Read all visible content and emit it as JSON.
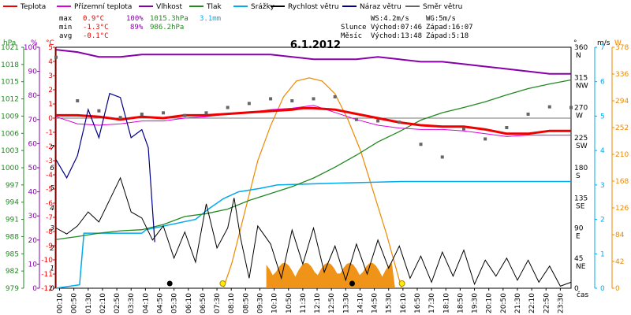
{
  "chart_data": {
    "type": "line",
    "title": "6.1.2012",
    "legend": [
      {
        "label": "Teplota",
        "color": "#ee0000"
      },
      {
        "label": "Přízemní teplota",
        "color": "#dd00dd"
      },
      {
        "label": "Vlhkost",
        "color": "#8800aa"
      },
      {
        "label": "Tlak",
        "color": "#228822"
      },
      {
        "label": "Srážky",
        "color": "#00aaee"
      },
      {
        "label": "Rychlost větru",
        "color": "#000000"
      },
      {
        "label": "Náraz větru",
        "color": "#000088"
      },
      {
        "label": "Směr větru",
        "color": "#666666"
      }
    ],
    "stats": {
      "max_label": "max",
      "min_label": "min",
      "avg_label": "avg",
      "max_temp": "0.9°C",
      "max_hum": "100%",
      "max_press": "1015.3hPa",
      "max_rain": "3.1mm",
      "min_temp": "-1.3°C",
      "min_hum": "89%",
      "min_press": "986.2hPa",
      "avg_temp": "-0.1°C",
      "ws": "WS:4.2m/s",
      "wg": "WG:5m/s",
      "sun_label": "Slunce",
      "sun_rise": "Východ:07:46",
      "sun_set": "Západ:16:07",
      "moon_label": "Měsíc",
      "moon_rise": "Východ:13:48",
      "moon_set": "Západ:5:18"
    },
    "axis_titles": {
      "hpa": "hPa",
      "pct": "%",
      "degc": "°C",
      "deg": "°",
      "ms": "m/s",
      "w": "W",
      "time": "čas"
    },
    "colors": {
      "hpa": "#228822",
      "pct": "#8800aa",
      "degc": "#ee0000",
      "ms_left": "#000000",
      "deg": "#000000",
      "ms_right": "#00aaee",
      "w": "#ee8800"
    },
    "axes": {
      "temp_c": {
        "min": -12,
        "max": 5
      },
      "humidity_pct": {
        "min": 0,
        "max": 100
      },
      "pressure_hpa": {
        "min": 979,
        "max": 1021
      },
      "wind_left_ms": {
        "min": 0,
        "max": 12
      },
      "direction_deg": {
        "min": 0,
        "max": 360
      },
      "wind_right_ms": {
        "min": 0,
        "max": 7
      },
      "solar_w": {
        "min": 0,
        "max": 378
      }
    },
    "hpa_ticks": [
      "1021",
      "1018",
      "1015",
      "1012",
      "1009",
      "1006",
      "1003",
      "1000",
      "997",
      "994",
      "991",
      "988",
      "985",
      "982",
      "979"
    ],
    "pct_ticks": [
      "100",
      "90",
      "80",
      "70",
      "60",
      "50",
      "40",
      "30",
      "20",
      "10",
      "0"
    ],
    "degc_ticks": [
      "5",
      "4",
      "3",
      "2",
      "1",
      "0",
      "-1",
      "-2",
      "-3",
      "-4",
      "-5",
      "-6",
      "-7",
      "-8",
      "-9",
      "-10",
      "-11",
      "-12"
    ],
    "ms_left_ticks": [
      "12",
      "11",
      "10",
      "9",
      "8",
      "7",
      "6",
      "5",
      "4",
      "3",
      "2",
      "1",
      "0"
    ],
    "deg_ticks": [
      {
        "v": "360",
        "d": "N"
      },
      {
        "v": "315",
        "d": "NW"
      },
      {
        "v": "270",
        "d": "W"
      },
      {
        "v": "225",
        "d": "SW"
      },
      {
        "v": "180",
        "d": "S"
      },
      {
        "v": "135",
        "d": "SE"
      },
      {
        "v": "90",
        "d": "E"
      },
      {
        "v": "45",
        "d": "NE"
      },
      {
        "v": "0",
        "d": ""
      }
    ],
    "ms_right_ticks": [
      "7",
      "6",
      "5",
      "4",
      "3",
      "2",
      "1",
      "0"
    ],
    "w_ticks": [
      "378",
      "336",
      "294",
      "252",
      "210",
      "168",
      "126",
      "84",
      "42",
      "0"
    ],
    "time_ticks": [
      "00:10",
      "00:50",
      "01:30",
      "02:10",
      "02:50",
      "03:30",
      "04:10",
      "04:50",
      "05:30",
      "06:10",
      "06:50",
      "07:30",
      "08:10",
      "08:50",
      "09:30",
      "10:10",
      "10:50",
      "11:30",
      "12:10",
      "12:50",
      "13:30",
      "14:10",
      "14:50",
      "15:30",
      "16:10",
      "16:50",
      "17:30",
      "18:10",
      "18:50",
      "19:30",
      "20:10",
      "20:50",
      "21:30",
      "22:10",
      "22:50",
      "23:30"
    ],
    "temperature": [
      [
        0,
        0.2
      ],
      [
        1,
        0.2
      ],
      [
        2,
        0.1
      ],
      [
        3,
        -0.1
      ],
      [
        4,
        0.1
      ],
      [
        5,
        0
      ],
      [
        6,
        0.2
      ],
      [
        7,
        0.2
      ],
      [
        8,
        0.3
      ],
      [
        9,
        0.4
      ],
      [
        10,
        0.5
      ],
      [
        11,
        0.6
      ],
      [
        11.5,
        0.7
      ],
      [
        12,
        0.7
      ],
      [
        13,
        0.6
      ],
      [
        14,
        0.3
      ],
      [
        15,
        0
      ],
      [
        16,
        -0.3
      ],
      [
        17,
        -0.5
      ],
      [
        18,
        -0.6
      ],
      [
        19,
        -0.6
      ],
      [
        20,
        -0.8
      ],
      [
        21,
        -1.1
      ],
      [
        22,
        -1.1
      ],
      [
        23,
        -0.9
      ],
      [
        24,
        -0.9
      ]
    ],
    "ground_temperature": [
      [
        0,
        0.1
      ],
      [
        1,
        -0.4
      ],
      [
        2,
        -0.5
      ],
      [
        3,
        -0.4
      ],
      [
        4,
        -0.2
      ],
      [
        5,
        -0.2
      ],
      [
        6,
        0
      ],
      [
        7,
        0.1
      ],
      [
        8,
        0.3
      ],
      [
        9,
        0.4
      ],
      [
        10,
        0.6
      ],
      [
        11,
        0.7
      ],
      [
        12,
        0.9
      ],
      [
        13,
        0.4
      ],
      [
        14,
        -0.1
      ],
      [
        15,
        -0.5
      ],
      [
        16,
        -0.7
      ],
      [
        17,
        -0.8
      ],
      [
        18,
        -0.8
      ],
      [
        19,
        -0.9
      ],
      [
        20,
        -1.1
      ],
      [
        21,
        -1.3
      ],
      [
        22,
        -1.2
      ],
      [
        23,
        -1.2
      ],
      [
        24,
        -1.2
      ]
    ],
    "humidity": [
      [
        0,
        99
      ],
      [
        1,
        98
      ],
      [
        2,
        96
      ],
      [
        3,
        96
      ],
      [
        4,
        97
      ],
      [
        5,
        97
      ],
      [
        6,
        97
      ],
      [
        7,
        97
      ],
      [
        8,
        97
      ],
      [
        9,
        97
      ],
      [
        10,
        97
      ],
      [
        11,
        96
      ],
      [
        12,
        95
      ],
      [
        13,
        95
      ],
      [
        14,
        95
      ],
      [
        15,
        96
      ],
      [
        16,
        95
      ],
      [
        17,
        94
      ],
      [
        18,
        94
      ],
      [
        19,
        93
      ],
      [
        20,
        92
      ],
      [
        21,
        91
      ],
      [
        22,
        90
      ],
      [
        23,
        89
      ],
      [
        24,
        89
      ]
    ],
    "pressure": [
      [
        0,
        987.5
      ],
      [
        1,
        988.0
      ],
      [
        2,
        988.6
      ],
      [
        3,
        989.0
      ],
      [
        4,
        989.2
      ],
      [
        5,
        990.1
      ],
      [
        6,
        991.5
      ],
      [
        7,
        992.0
      ],
      [
        8,
        992.8
      ],
      [
        9,
        994.3
      ],
      [
        10,
        995.5
      ],
      [
        11,
        996.7
      ],
      [
        12,
        998.2
      ],
      [
        13,
        1000.1
      ],
      [
        14,
        1002.2
      ],
      [
        15,
        1004.5
      ],
      [
        16,
        1006.3
      ],
      [
        17,
        1008.3
      ],
      [
        18,
        1009.6
      ],
      [
        19,
        1010.5
      ],
      [
        20,
        1011.5
      ],
      [
        21,
        1012.7
      ],
      [
        22,
        1013.8
      ],
      [
        23,
        1014.6
      ],
      [
        24,
        1015.3
      ]
    ],
    "rain_m_s": [
      [
        0,
        0
      ],
      [
        1.1,
        0.1
      ],
      [
        1.3,
        1.6
      ],
      [
        4,
        1.6
      ],
      [
        4.2,
        1.7
      ],
      [
        6.5,
        2.0
      ],
      [
        7.1,
        2.3
      ],
      [
        7.8,
        2.6
      ],
      [
        8.5,
        2.8
      ],
      [
        9.5,
        2.9
      ],
      [
        10.3,
        3.0
      ],
      [
        12.8,
        3.05
      ],
      [
        16.1,
        3.1
      ],
      [
        24,
        3.1
      ]
    ],
    "wind_speed": [
      [
        0,
        3
      ],
      [
        0.5,
        2.7
      ],
      [
        1,
        3.1
      ],
      [
        1.5,
        3.8
      ],
      [
        2,
        3.3
      ],
      [
        2.5,
        4.4
      ],
      [
        3,
        5.5
      ],
      [
        3.5,
        3.8
      ],
      [
        4,
        3.5
      ],
      [
        4.5,
        2.4
      ],
      [
        5,
        3.1
      ],
      [
        5.5,
        1.5
      ],
      [
        6,
        2.8
      ],
      [
        6.5,
        1.3
      ],
      [
        7,
        4.2
      ],
      [
        7.5,
        2.0
      ],
      [
        8,
        3.0
      ],
      [
        8.3,
        4.5
      ],
      [
        8.6,
        2.5
      ],
      [
        9,
        0.5
      ],
      [
        9.4,
        3.1
      ],
      [
        10,
        2.2
      ],
      [
        10.5,
        0.5
      ],
      [
        11,
        2.9
      ],
      [
        11.5,
        1.2
      ],
      [
        12,
        3.0
      ],
      [
        12.5,
        0.8
      ],
      [
        13,
        2.1
      ],
      [
        13.5,
        0.4
      ],
      [
        14,
        2.2
      ],
      [
        14.5,
        0.7
      ],
      [
        15,
        2.4
      ],
      [
        15.5,
        1.0
      ],
      [
        16,
        2.1
      ],
      [
        16.5,
        0.5
      ],
      [
        17,
        1.6
      ],
      [
        17.5,
        0.3
      ],
      [
        18,
        1.8
      ],
      [
        18.5,
        0.6
      ],
      [
        19,
        1.9
      ],
      [
        19.5,
        0.2
      ],
      [
        20,
        1.4
      ],
      [
        20.5,
        0.6
      ],
      [
        21,
        1.5
      ],
      [
        21.5,
        0.4
      ],
      [
        22,
        1.4
      ],
      [
        22.5,
        0.3
      ],
      [
        23,
        1.1
      ],
      [
        23.5,
        0.1
      ],
      [
        24,
        0.3
      ]
    ],
    "wind_gust": [
      [
        0,
        6.4
      ],
      [
        0.5,
        5.5
      ],
      [
        1,
        6.6
      ],
      [
        1.5,
        8.9
      ],
      [
        2,
        7.5
      ],
      [
        2.5,
        9.7
      ],
      [
        3,
        9.5
      ],
      [
        3.5,
        7.5
      ],
      [
        4,
        7.9
      ],
      [
        4.3,
        7.0
      ],
      [
        4.6,
        2.3
      ]
    ],
    "wind_direction_deg": [
      [
        0,
        345
      ],
      [
        1,
        280
      ],
      [
        2,
        265
      ],
      [
        3,
        255
      ],
      [
        4,
        260
      ],
      [
        5,
        262
      ],
      [
        6,
        258
      ],
      [
        7,
        262
      ],
      [
        8,
        270
      ],
      [
        9,
        276
      ],
      [
        10,
        283
      ],
      [
        11,
        280
      ],
      [
        12,
        283
      ],
      [
        13,
        286
      ],
      [
        14,
        252
      ],
      [
        15,
        250
      ],
      [
        16,
        248
      ],
      [
        17,
        215
      ],
      [
        18,
        196
      ],
      [
        19,
        238
      ],
      [
        20,
        223
      ],
      [
        21,
        240
      ],
      [
        22,
        260
      ],
      [
        23,
        271
      ],
      [
        24,
        270
      ]
    ],
    "solar_radiation_w": [
      [
        7.8,
        0
      ],
      [
        8.2,
        40
      ],
      [
        8.8,
        120
      ],
      [
        9.4,
        200
      ],
      [
        10,
        255
      ],
      [
        10.6,
        300
      ],
      [
        11.2,
        325
      ],
      [
        11.8,
        330
      ],
      [
        12.4,
        325
      ],
      [
        13,
        305
      ],
      [
        13.6,
        265
      ],
      [
        14.2,
        215
      ],
      [
        14.8,
        150
      ],
      [
        15.4,
        85
      ],
      [
        16.1,
        0
      ]
    ],
    "sun_markers": {
      "sunrise_hour": 7.77,
      "sunset_hour": 16.12,
      "moonrise_hour": 13.8,
      "moonset_hour": 5.3
    }
  }
}
